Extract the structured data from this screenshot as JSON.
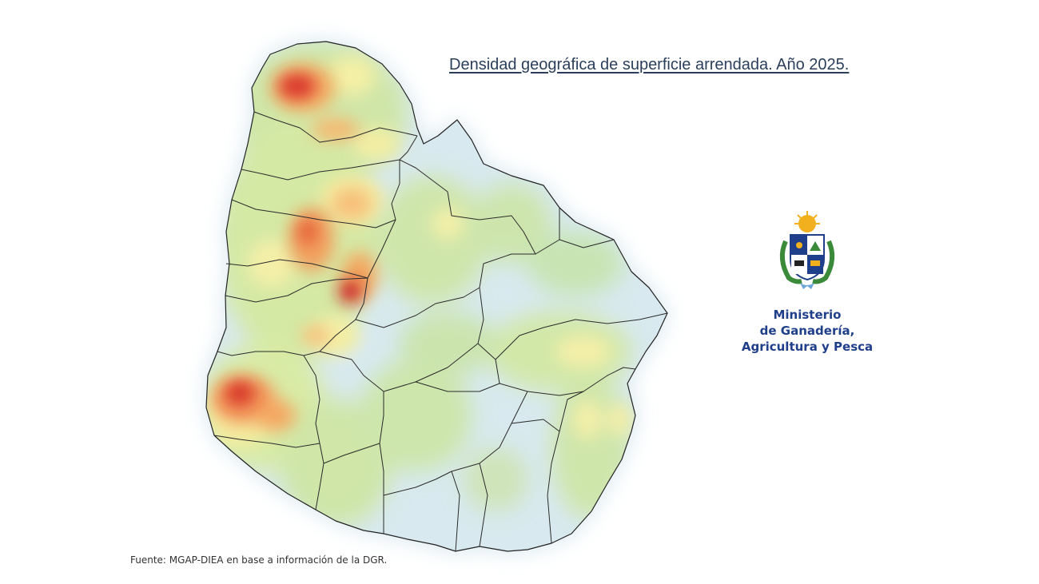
{
  "title": "Densidad geográfica de superficie arrendada. Año 2025.",
  "source": "Fuente: MGAP-DIEA en base a información de la DGR.",
  "logo": {
    "lines": [
      "Ministerio",
      "de Ganadería,",
      "Agricultura y Pesca"
    ]
  },
  "map": {
    "country": "Uruguay",
    "density_scale": [
      "#d6e8ee",
      "#c9e4b0",
      "#f3f0a8",
      "#f5b064",
      "#e0482f",
      "#c9151b"
    ]
  }
}
